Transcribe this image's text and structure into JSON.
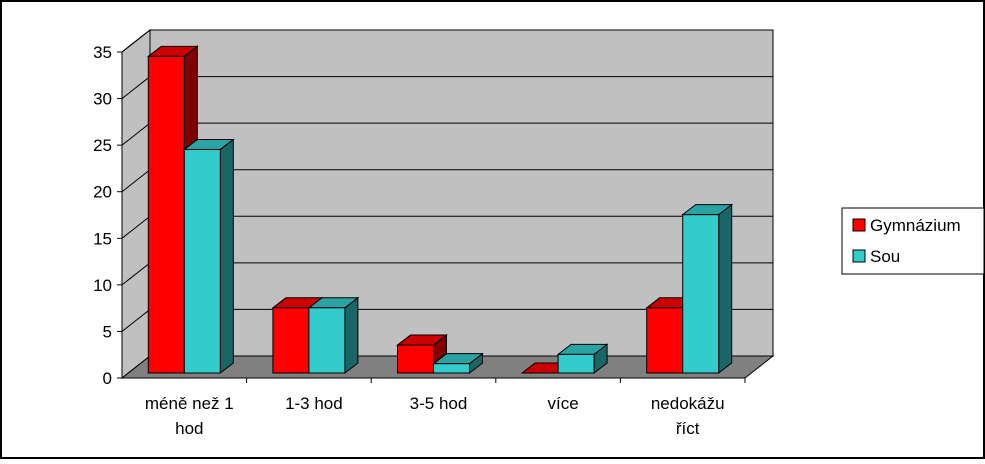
{
  "chart_data": {
    "type": "bar",
    "categories": [
      [
        "méně než 1",
        "hod"
      ],
      [
        "1-3 hod"
      ],
      [
        "3-5 hod"
      ],
      [
        "více"
      ],
      [
        "nedokážu",
        "říct"
      ]
    ],
    "series": [
      {
        "name": "Gymnázium",
        "values": [
          34,
          7,
          3,
          0,
          7
        ],
        "color": "#ff0000",
        "side_color": "#800000",
        "top_color": "#cc0000"
      },
      {
        "name": "Sou",
        "values": [
          24,
          7,
          1,
          2,
          17
        ],
        "color": "#33cccc",
        "side_color": "#1a6666",
        "top_color": "#29a3a3"
      }
    ],
    "yticks": [
      "0",
      "5",
      "10",
      "15",
      "20",
      "25",
      "30",
      "35"
    ],
    "ylim": [
      0,
      35
    ],
    "grid": true,
    "legend_position": "right",
    "wall_color": "#c0c0c0",
    "floor_color": "#808080",
    "three_d": true
  }
}
